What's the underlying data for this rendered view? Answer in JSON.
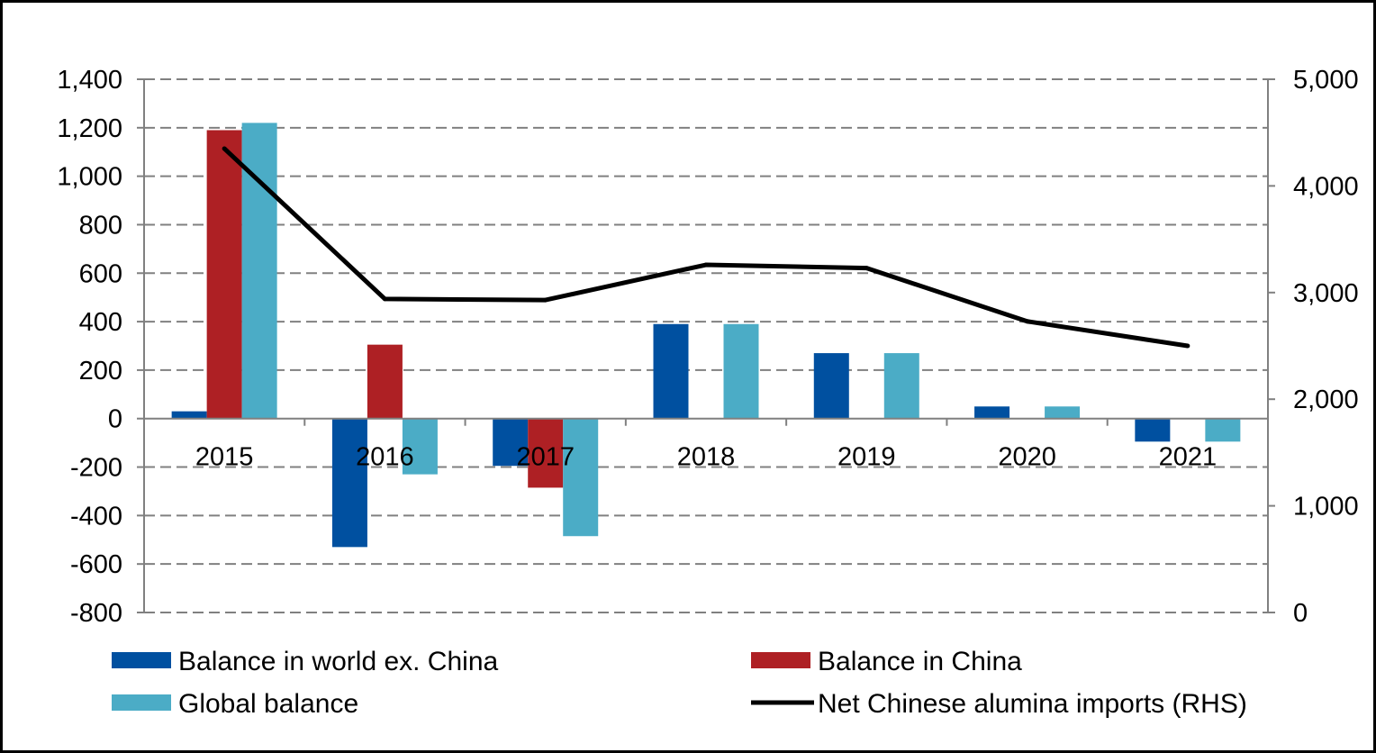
{
  "chart_data": {
    "type": "bar",
    "categories": [
      "2015",
      "2016",
      "2017",
      "2018",
      "2019",
      "2020",
      "2021"
    ],
    "series": [
      {
        "name": "Balance in world ex. China",
        "type": "bar",
        "axis": "left",
        "color": "#0050A0",
        "values": [
          30,
          -530,
          -195,
          390,
          270,
          50,
          -95
        ]
      },
      {
        "name": "Balance in China",
        "type": "bar",
        "axis": "left",
        "color": "#AE2024",
        "values": [
          1190,
          305,
          -285,
          0,
          0,
          0,
          0
        ]
      },
      {
        "name": "Global balance",
        "type": "bar",
        "axis": "left",
        "color": "#4BACC6",
        "values": [
          1220,
          -230,
          -485,
          390,
          270,
          50,
          -95
        ]
      },
      {
        "name": "Net Chinese alumina imports (RHS)",
        "type": "line",
        "axis": "right",
        "color": "#000000",
        "values": [
          4350,
          2940,
          2930,
          3260,
          3230,
          2730,
          2500
        ]
      }
    ],
    "y_left": {
      "min": -800,
      "max": 1400,
      "step": 200,
      "ticks": [
        "-800",
        "-600",
        "-400",
        "-200",
        "0",
        "200",
        "400",
        "600",
        "800",
        "1,000",
        "1,200",
        "1,400"
      ]
    },
    "y_right": {
      "min": 0,
      "max": 5000,
      "step": 1000,
      "ticks": [
        "0",
        "1,000",
        "2,000",
        "3,000",
        "4,000",
        "5,000"
      ]
    },
    "grid": "horizontal-dashed",
    "legend_placement": "bottom"
  }
}
